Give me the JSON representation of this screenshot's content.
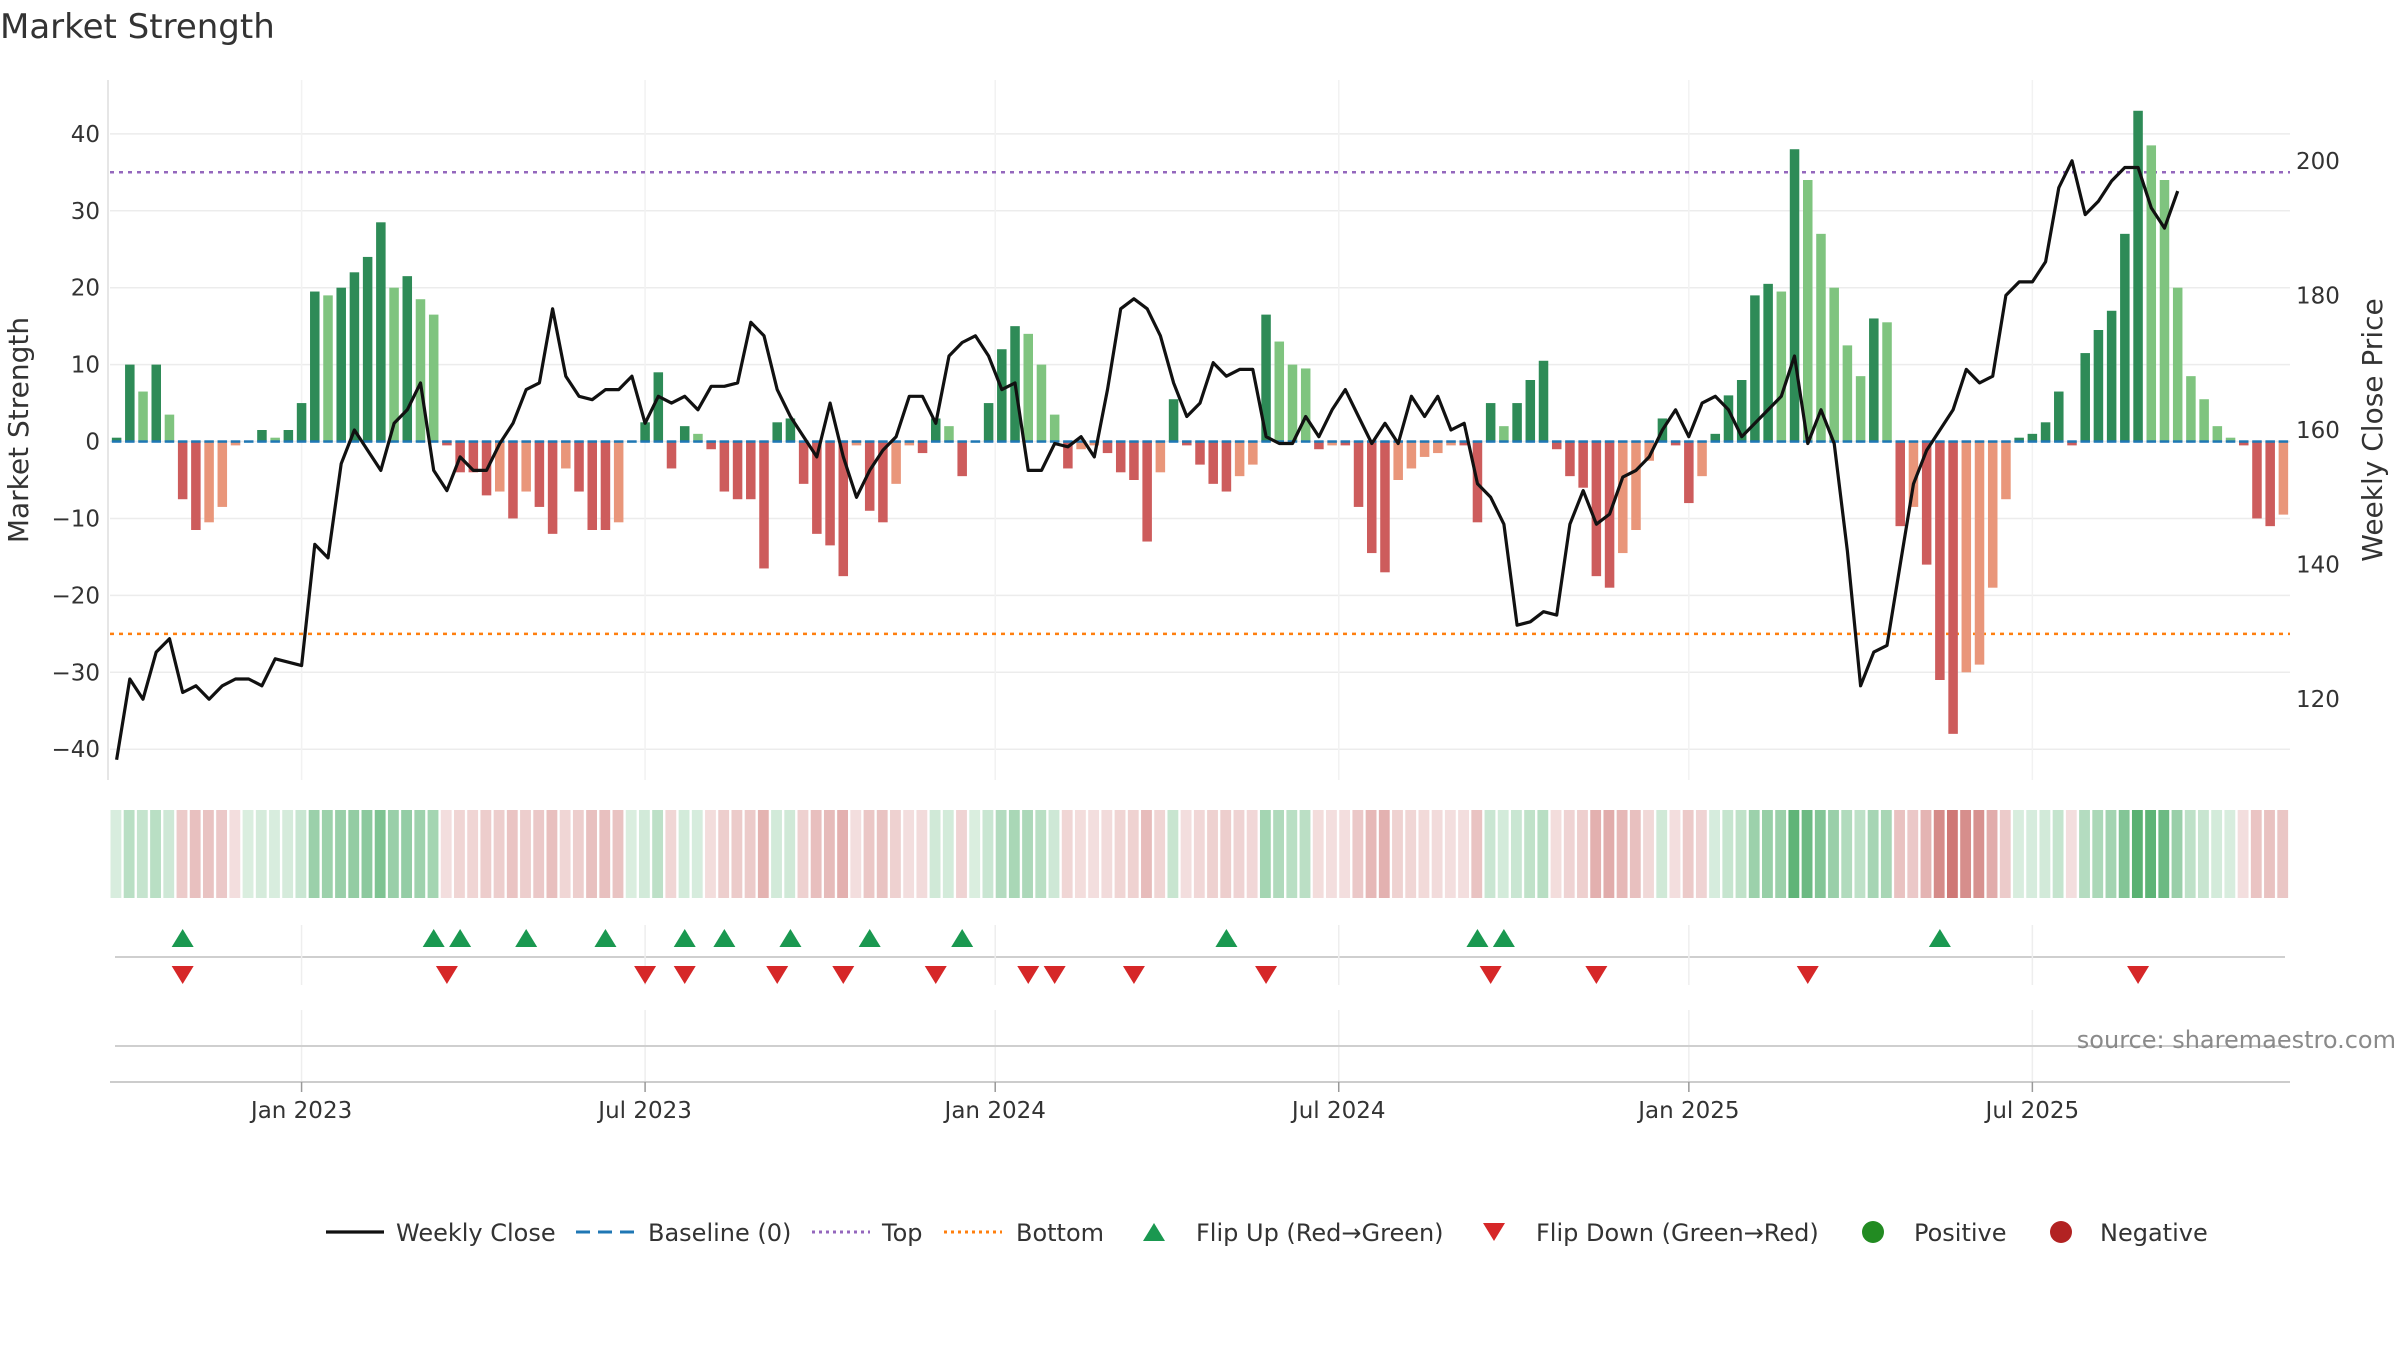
{
  "chart_data": {
    "type": "bar",
    "title": "Market Strength",
    "ylabel_left": "Market Strength",
    "ylabel_right": "Weekly Close Price",
    "y_left_range": [
      -44,
      47
    ],
    "y_right_range": [
      108,
      212
    ],
    "y_left_ticks": [
      40,
      30,
      20,
      10,
      0,
      -10,
      -20,
      -30,
      -40
    ],
    "y_left_tick_labels": [
      "40",
      "30",
      "20",
      "10",
      "0",
      "−10",
      "−20",
      "−30",
      "−40"
    ],
    "y_right_ticks": [
      200,
      180,
      160,
      140,
      120
    ],
    "y_right_tick_labels": [
      "200",
      "180",
      "160",
      "140",
      "120"
    ],
    "top_line": 35,
    "bottom_line": -25,
    "x_ticks": [
      {
        "label": "Jan 2023",
        "week": 14
      },
      {
        "label": "Jul 2023",
        "week": 40
      },
      {
        "label": "Jan 2024",
        "week": 66.5
      },
      {
        "label": "Jul 2024",
        "week": 92.5
      },
      {
        "label": "Jan 2025",
        "week": 119
      },
      {
        "label": "Jul 2025",
        "week": 145
      }
    ],
    "strength": [
      0.5,
      10,
      6.5,
      10,
      3.5,
      -7.5,
      -11.5,
      -10.5,
      -8.5,
      -0.5,
      0,
      1.5,
      0.5,
      1.5,
      5,
      19.5,
      19,
      20,
      22,
      24,
      28.5,
      20,
      21.5,
      18.5,
      16.5,
      -0.5,
      -4,
      -4,
      -7,
      -6.5,
      -10,
      -6.5,
      -8.5,
      -12,
      -3.5,
      -6.5,
      -11.5,
      -11.5,
      -10.5,
      0,
      2.5,
      9,
      -3.5,
      2,
      1,
      -1,
      -6.5,
      -7.5,
      -7.5,
      -16.5,
      2.5,
      3,
      -5.5,
      -12,
      -13.5,
      -17.5,
      -0.5,
      -9,
      -10.5,
      -5.5,
      -0.5,
      -1.5,
      3,
      2,
      -4.5,
      0,
      5,
      12,
      15,
      14,
      10,
      3.5,
      -3.5,
      -1,
      -0.5,
      -1.5,
      -4,
      -5,
      -13,
      -4,
      5.5,
      -0.5,
      -3,
      -5.5,
      -6.5,
      -4.5,
      -3,
      16.5,
      13,
      10,
      9.5,
      -1,
      -0.5,
      -0.5,
      -8.5,
      -14.5,
      -17,
      -5,
      -3.5,
      -2,
      -1.5,
      -0.5,
      -0.5,
      -10.5,
      5,
      2,
      5,
      8,
      10.5,
      -1,
      -4.5,
      -6,
      -17.5,
      -19,
      -14.5,
      -11.5,
      -2.5,
      3,
      -0.5,
      -8,
      -4.5,
      1,
      6,
      8,
      19,
      20.5,
      19.5,
      38,
      34,
      27,
      20,
      12.5,
      8.5,
      16,
      15.5,
      -11,
      -8.5,
      -16,
      -31,
      -38,
      -30,
      -29,
      -19,
      -7.5,
      0.5,
      1,
      2.5,
      6.5,
      -0.5,
      11.5,
      14.5,
      17,
      27,
      43,
      38.5,
      34,
      20,
      8.5,
      5.5,
      2,
      0.5,
      -0.5,
      -10,
      -11,
      -9.5
    ],
    "price": [
      111,
      123,
      120,
      127,
      129,
      121,
      122,
      120,
      122,
      123,
      123,
      122,
      126,
      125.5,
      125,
      143,
      141,
      155,
      160,
      157,
      154,
      161,
      163,
      167,
      154,
      151,
      156,
      154,
      154,
      158,
      161,
      166,
      167,
      178,
      168,
      165,
      164.5,
      166,
      166,
      168,
      161,
      165,
      164,
      165,
      163,
      166.5,
      166.5,
      167,
      176,
      174,
      166,
      162,
      159,
      156,
      164,
      156,
      150,
      154,
      157,
      159,
      165,
      165,
      161,
      171,
      173,
      174,
      171,
      166,
      167,
      154,
      154,
      158,
      157.5,
      159,
      156,
      166,
      178,
      179.5,
      178,
      174,
      167,
      162,
      164,
      170,
      168,
      169,
      169,
      159,
      158,
      158,
      162,
      159,
      163,
      166,
      162,
      158,
      161,
      158,
      165,
      162,
      165,
      160,
      161,
      152,
      150,
      146,
      131,
      131.5,
      133,
      132.5,
      146,
      151,
      146,
      147.5,
      153,
      154,
      156,
      160,
      163,
      159,
      164,
      165,
      163,
      159,
      161,
      163,
      165,
      171,
      158,
      163,
      158,
      142,
      122,
      127,
      128,
      140,
      152,
      157,
      160,
      163,
      169,
      167,
      168,
      180,
      182,
      182,
      185,
      196,
      200,
      192,
      194,
      197,
      199,
      199,
      193,
      190,
      195.5
    ],
    "flip_up_weeks": [
      5,
      24,
      26,
      31,
      37,
      43,
      46,
      51,
      57,
      64,
      84,
      103,
      105,
      138
    ],
    "flip_down_weeks": [
      5,
      25,
      40,
      43,
      50,
      55,
      62,
      69,
      71,
      77,
      87,
      104,
      112,
      128,
      153
    ],
    "legend": [
      "Weekly Close",
      "Baseline (0)",
      "Top",
      "Bottom",
      "Flip Up (Red→Green)",
      "Flip Down (Green→Red)",
      "Positive",
      "Negative"
    ],
    "source": "source: sharemaestro.com"
  },
  "colors": {
    "pos_dark": "#2e8b57",
    "pos_light": "#7fc47f",
    "neg_dark": "#cd5c5c",
    "neg_light": "#e9967a",
    "price_line": "#111111",
    "baseline": "#1f77b4",
    "top_line": "#9467bd",
    "bottom_line": "#ff7f0e",
    "flip_up": "#1a9850",
    "flip_down": "#d62728",
    "positive_dot": "#228b22",
    "negative_dot": "#b22222"
  }
}
